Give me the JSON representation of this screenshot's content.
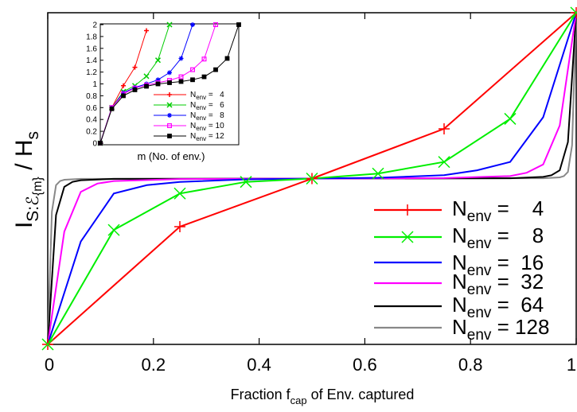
{
  "chart_data": [
    {
      "type": "line",
      "role": "main",
      "xlabel": "Fraction f",
      "xlabel_sub": "cap",
      "xlabel_rest": " of Env. captured",
      "ylabel_main": "I",
      "ylabel_sub": "S:ℰ",
      "ylabel_subsub": "{m}",
      "ylabel_rest": " / H",
      "ylabel_rest_sub": "s",
      "xlim": [
        0,
        1
      ],
      "ylim": [
        0,
        2
      ],
      "xticks": [
        "0",
        "0.2",
        "0.4",
        "0.6",
        "0.8",
        "1"
      ],
      "grid": false,
      "legend_position": "bottom-right",
      "series": [
        {
          "name": "N_env =   4",
          "label_prefix": "N",
          "label_sub": "env",
          "label_value": " =    4",
          "color": "#ff0000",
          "marker": "plus",
          "x": [
            0,
            0.25,
            0.5,
            0.75,
            1
          ],
          "y": [
            0,
            0.71,
            1.0,
            1.3,
            2.0
          ]
        },
        {
          "name": "N_env =   8",
          "label_prefix": "N",
          "label_sub": "env",
          "label_value": " =    8",
          "color": "#00ee00",
          "marker": "x",
          "x": [
            0,
            0.125,
            0.25,
            0.375,
            0.5,
            0.625,
            0.75,
            0.875,
            1
          ],
          "y": [
            0,
            0.69,
            0.91,
            0.98,
            1.0,
            1.03,
            1.1,
            1.36,
            2.0
          ]
        },
        {
          "name": "N_env =  16",
          "label_prefix": "N",
          "label_sub": "env",
          "label_value": " =  16",
          "color": "#0000ff",
          "marker": "none",
          "x": [
            0,
            0.0625,
            0.125,
            0.1875,
            0.25,
            0.375,
            0.5,
            0.625,
            0.75,
            0.8125,
            0.875,
            0.9375,
            1
          ],
          "y": [
            0,
            0.62,
            0.91,
            0.96,
            0.98,
            0.995,
            1.0,
            1.005,
            1.02,
            1.05,
            1.1,
            1.37,
            2.0
          ]
        },
        {
          "name": "N_env =  32",
          "label_prefix": "N",
          "label_sub": "env",
          "label_value": " =  32",
          "color": "#ff00ff",
          "marker": "none",
          "x": [
            0,
            0.03125,
            0.0625,
            0.09375,
            0.125,
            0.25,
            0.5,
            0.75,
            0.875,
            0.90625,
            0.9375,
            0.96875,
            1
          ],
          "y": [
            0,
            0.68,
            0.92,
            0.97,
            0.985,
            0.997,
            1.0,
            1.003,
            1.015,
            1.035,
            1.085,
            1.32,
            2.0
          ]
        },
        {
          "name": "N_env =  64",
          "label_prefix": "N",
          "label_sub": "env",
          "label_value": " =  64",
          "color": "#000000",
          "marker": "none",
          "x": [
            0,
            0.015625,
            0.03125,
            0.046875,
            0.0625,
            0.125,
            0.5,
            0.875,
            0.9375,
            0.953125,
            0.96875,
            0.984375,
            1
          ],
          "y": [
            0,
            0.78,
            0.95,
            0.98,
            0.99,
            0.998,
            1.0,
            1.002,
            1.01,
            1.02,
            1.05,
            1.22,
            2.0
          ]
        },
        {
          "name": "N_env = 128",
          "label_prefix": "N",
          "label_sub": "env",
          "label_value": " = 128",
          "color": "#888888",
          "marker": "none",
          "x": [
            0,
            0.0078,
            0.0156,
            0.0234,
            0.0313,
            0.0625,
            0.5,
            0.9375,
            0.9688,
            0.9766,
            0.9844,
            0.9922,
            1
          ],
          "y": [
            0,
            0.8,
            0.96,
            0.985,
            0.993,
            0.998,
            1.0,
            1.002,
            1.007,
            1.015,
            1.04,
            1.2,
            2.0
          ]
        }
      ]
    },
    {
      "type": "line",
      "role": "inset",
      "xlabel": "m (No. of env.)",
      "ylim": [
        0,
        2
      ],
      "yticks": [
        "0",
        "0.2",
        "0.4",
        "0.6",
        "0.8",
        "1",
        "1.2",
        "1.4",
        "1.6",
        "1.8",
        "2"
      ],
      "legend_position": "bottom-right",
      "series": [
        {
          "label_prefix": "N",
          "label_sub": "env",
          "label_value": " =   4",
          "color": "#ff0000",
          "marker": "plus",
          "x": [
            0,
            1,
            2,
            3,
            4
          ],
          "y": [
            0,
            0.6,
            0.97,
            1.28,
            1.9
          ]
        },
        {
          "label_prefix": "N",
          "label_sub": "env",
          "label_value": " =   6",
          "color": "#00cc00",
          "marker": "x",
          "x": [
            0,
            1,
            2,
            3,
            4,
            5,
            6
          ],
          "y": [
            0,
            0.6,
            0.87,
            0.97,
            1.13,
            1.4,
            2.0
          ]
        },
        {
          "label_prefix": "N",
          "label_sub": "env",
          "label_value": " =   8",
          "color": "#0000ff",
          "marker": "asterisk",
          "x": [
            0,
            1,
            2,
            3,
            4,
            5,
            6,
            7,
            8
          ],
          "y": [
            0,
            0.6,
            0.85,
            0.94,
            1.0,
            1.07,
            1.19,
            1.43,
            2.0
          ]
        },
        {
          "label_prefix": "N",
          "label_sub": "env",
          "label_value": " = 10",
          "color": "#ff00ff",
          "marker": "square-open",
          "x": [
            0,
            1,
            2,
            3,
            4,
            5,
            6,
            7,
            8,
            9,
            10
          ],
          "y": [
            0,
            0.6,
            0.83,
            0.93,
            0.98,
            1.02,
            1.06,
            1.12,
            1.24,
            1.42,
            2.0
          ]
        },
        {
          "label_prefix": "N",
          "label_sub": "env",
          "label_value": " = 12",
          "color": "#000000",
          "marker": "square-filled",
          "x": [
            0,
            1,
            2,
            3,
            4,
            5,
            6,
            7,
            8,
            9,
            10,
            11,
            12
          ],
          "y": [
            0,
            0.58,
            0.8,
            0.9,
            0.96,
            1.0,
            1.02,
            1.04,
            1.07,
            1.12,
            1.24,
            1.43,
            2.0
          ]
        }
      ]
    }
  ]
}
